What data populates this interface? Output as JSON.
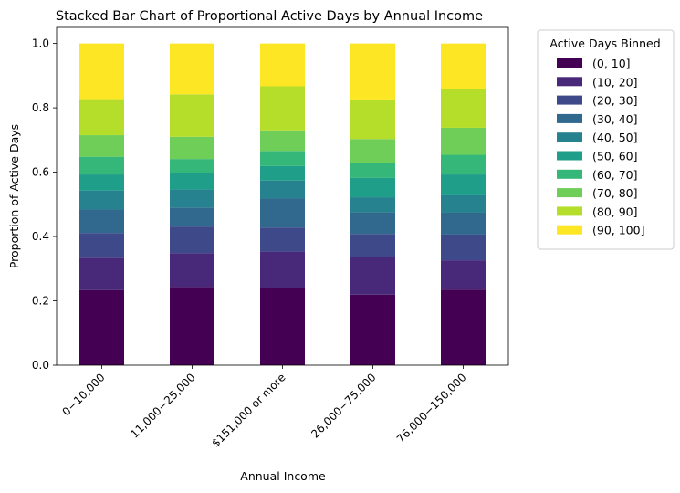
{
  "chart_data": {
    "type": "bar",
    "stacked": true,
    "title": "Stacked Bar Chart of Proportional Active Days by Annual Income",
    "xlabel": "Annual Income",
    "ylabel": "Proportion of Active Days",
    "ylim": [
      0,
      1.05
    ],
    "yticks": [
      "0.0",
      "0.2",
      "0.4",
      "0.6",
      "0.8",
      "1.0"
    ],
    "grid": false,
    "categories": [
      "0−10,000",
      "11,000−25,000",
      "$151,000 or more",
      "26,000−75,000",
      "76,000−150,000"
    ],
    "legend": {
      "title": "Active Days Binned",
      "placement": "outside-upper-right"
    },
    "series": [
      {
        "name": "(0, 10]",
        "color": "#440154",
        "values": [
          0.233,
          0.243,
          0.24,
          0.219,
          0.235
        ]
      },
      {
        "name": "(10, 20]",
        "color": "#482878",
        "values": [
          0.101,
          0.105,
          0.113,
          0.118,
          0.091
        ]
      },
      {
        "name": "(20, 30]",
        "color": "#3e4989",
        "values": [
          0.077,
          0.083,
          0.075,
          0.071,
          0.08
        ]
      },
      {
        "name": "(30, 40]",
        "color": "#31688e",
        "values": [
          0.073,
          0.059,
          0.09,
          0.067,
          0.068
        ]
      },
      {
        "name": "(40, 50]",
        "color": "#26828e",
        "values": [
          0.059,
          0.056,
          0.056,
          0.047,
          0.054
        ]
      },
      {
        "name": "(50, 60]",
        "color": "#1f9e89",
        "values": [
          0.05,
          0.05,
          0.045,
          0.06,
          0.065
        ]
      },
      {
        "name": "(60, 70]",
        "color": "#35b779",
        "values": [
          0.055,
          0.045,
          0.047,
          0.048,
          0.061
        ]
      },
      {
        "name": "(70, 80]",
        "color": "#6ece58",
        "values": [
          0.067,
          0.069,
          0.064,
          0.073,
          0.084
        ]
      },
      {
        "name": "(80, 90]",
        "color": "#b5de2b",
        "values": [
          0.112,
          0.132,
          0.137,
          0.123,
          0.121
        ]
      },
      {
        "name": "(90, 100]",
        "color": "#fde725",
        "values": [
          0.173,
          0.158,
          0.133,
          0.174,
          0.141
        ]
      }
    ]
  }
}
